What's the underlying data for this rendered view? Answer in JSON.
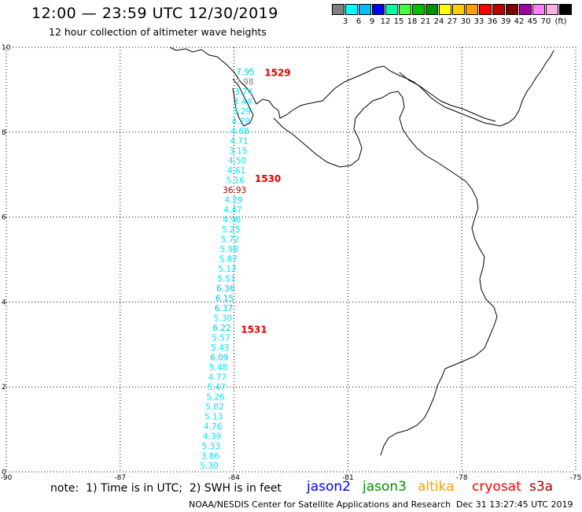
{
  "header": {
    "title": "12:00 — 23:59 UTC 12/30/2019",
    "subtitle": "12 hour collection of altimeter wave heights"
  },
  "scale": {
    "unit": "(ft)",
    "colors": [
      "#808080",
      "#00ffff",
      "#00bfff",
      "#0000ff",
      "#00ffa0",
      "#40ff40",
      "#00c000",
      "#009000",
      "#ffff00",
      "#ffd000",
      "#ffa000",
      "#ff0000",
      "#c00000",
      "#800000",
      "#a000a0",
      "#ff80ff",
      "#ffb0e0",
      "#000000"
    ],
    "labels": [
      "3",
      "6",
      "9",
      "12",
      "15",
      "18",
      "21",
      "24",
      "27",
      "30",
      "33",
      "36",
      "39",
      "42",
      "45",
      "70"
    ]
  },
  "axes": {
    "y_ticks": [
      "10",
      "8",
      "6",
      "4",
      "2",
      "0"
    ],
    "x_ticks": [
      "-90",
      "-87",
      "-84",
      "-81",
      "-78",
      "-75"
    ]
  },
  "orbits": [
    {
      "label": "1529",
      "lat": 9.4
    },
    {
      "label": "1530",
      "lat": 6.9
    },
    {
      "label": "1531",
      "lat": 3.35
    }
  ],
  "readings": [
    {
      "value": "7.95",
      "color": "#00c8e0"
    },
    {
      "value": "2.98",
      "color": "#808080"
    },
    {
      "value": "3.74",
      "color": "#00e5ff"
    },
    {
      "value": "3.44",
      "color": "#00e5ff"
    },
    {
      "value": "3.29",
      "color": "#00e5ff"
    },
    {
      "value": "4.29",
      "color": "#00e5ff"
    },
    {
      "value": "4.68",
      "color": "#00e5ff"
    },
    {
      "value": "4.71",
      "color": "#00e5ff"
    },
    {
      "value": "3.15",
      "color": "#00e5ff"
    },
    {
      "value": "4.50",
      "color": "#00e5ff"
    },
    {
      "value": "4.61",
      "color": "#00e5ff"
    },
    {
      "value": "5.16",
      "color": "#00e5ff"
    },
    {
      "value": "36.93",
      "color": "#a00000"
    },
    {
      "value": "4.29",
      "color": "#00e5ff"
    },
    {
      "value": "4.47",
      "color": "#00e5ff"
    },
    {
      "value": "4.96",
      "color": "#00e5ff"
    },
    {
      "value": "5.25",
      "color": "#00e5ff"
    },
    {
      "value": "5.72",
      "color": "#00e5ff"
    },
    {
      "value": "5.98",
      "color": "#00e5ff"
    },
    {
      "value": "5.87",
      "color": "#00e5ff"
    },
    {
      "value": "5.12",
      "color": "#00e5ff"
    },
    {
      "value": "5.51",
      "color": "#00e5ff"
    },
    {
      "value": "6.36",
      "color": "#00c8e0"
    },
    {
      "value": "6.15",
      "color": "#00c8e0"
    },
    {
      "value": "6.37",
      "color": "#00c8e0"
    },
    {
      "value": "5.30",
      "color": "#00e5ff"
    },
    {
      "value": "6.22",
      "color": "#00c8e0"
    },
    {
      "value": "5.57",
      "color": "#00e5ff"
    },
    {
      "value": "5.43",
      "color": "#00e5ff"
    },
    {
      "value": "6.09",
      "color": "#00c8e0"
    },
    {
      "value": "5.48",
      "color": "#00e5ff"
    },
    {
      "value": "4.77",
      "color": "#00e5ff"
    },
    {
      "value": "5.47",
      "color": "#00e5ff"
    },
    {
      "value": "5.26",
      "color": "#00e5ff"
    },
    {
      "value": "5.02",
      "color": "#00e5ff"
    },
    {
      "value": "5.13",
      "color": "#00e5ff"
    },
    {
      "value": "4.76",
      "color": "#00e5ff"
    },
    {
      "value": "4.39",
      "color": "#00e5ff"
    },
    {
      "value": "5.33",
      "color": "#00e5ff"
    },
    {
      "value": "3.86",
      "color": "#00e5ff"
    },
    {
      "value": "5.30",
      "color": "#00e5ff"
    }
  ],
  "footer": {
    "note": "note:  1) Time is in UTC;  2) SWH is in feet",
    "satellites": [
      {
        "name": "jason2",
        "color": "#0000ff"
      },
      {
        "name": "jason3",
        "color": "#009000"
      },
      {
        "name": "altika",
        "color": "#ffa000"
      },
      {
        "name": "cryosat",
        "color": "#ff0000"
      },
      {
        "name": "s3a",
        "color": "#a00000"
      }
    ],
    "credit": "NOAA/NESDIS Center for Satellite Applications and Research",
    "timestamp": "Dec 31 13:27:45 UTC 2019"
  }
}
